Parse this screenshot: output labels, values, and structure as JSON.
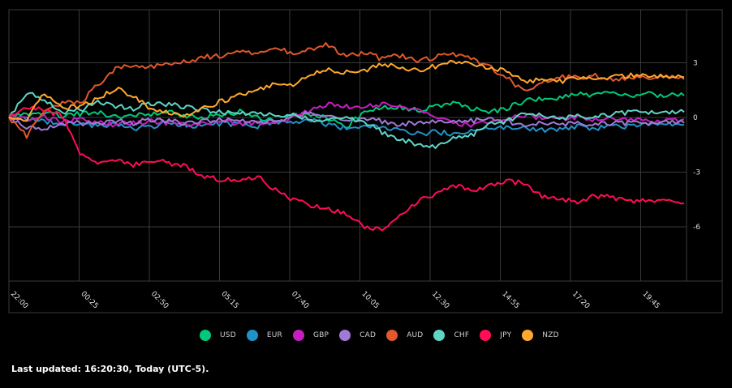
{
  "chart_data": {
    "type": "line",
    "title": "",
    "xlabel": "",
    "ylabel": "",
    "ylim": [
      -9,
      6
    ],
    "grid": true,
    "legend_position": "bottom",
    "x_tick_labels": [
      "22:00",
      "00:25",
      "02:50",
      "05:15",
      "07:40",
      "10:05",
      "12:30",
      "14:55",
      "17:20",
      "19:45"
    ],
    "y_tick_labels": [
      "3",
      "0",
      "-3",
      "-6"
    ],
    "y_ticks": [
      3,
      0,
      -3,
      -6
    ],
    "x": [
      "22:00",
      "22:36",
      "23:13",
      "23:49",
      "00:25",
      "01:01",
      "01:38",
      "02:14",
      "02:50",
      "03:26",
      "04:03",
      "04:39",
      "05:15",
      "05:51",
      "06:28",
      "07:04",
      "07:40",
      "08:16",
      "08:53",
      "09:29",
      "10:05",
      "10:41",
      "11:18",
      "11:54",
      "12:30",
      "13:06",
      "13:43",
      "14:19",
      "14:55",
      "15:31",
      "16:08",
      "16:44",
      "17:20",
      "17:56",
      "18:33",
      "19:09",
      "19:45",
      "20:21",
      "20:50"
    ],
    "series": [
      {
        "name": "USD",
        "color": "#00c97a",
        "values": [
          0,
          0.2,
          0.3,
          0.1,
          0.2,
          0.3,
          0.0,
          0.1,
          0.2,
          0.3,
          0.1,
          0.0,
          0.1,
          0.3,
          0.0,
          -0.2,
          0.1,
          0.2,
          -0.1,
          -0.5,
          0.3,
          0.5,
          0.6,
          0.4,
          0.6,
          0.8,
          0.5,
          0.3,
          0.5,
          0.9,
          1.0,
          1.1,
          1.3,
          1.2,
          1.4,
          1.2,
          1.3,
          1.2,
          1.2
        ]
      },
      {
        "name": "EUR",
        "color": "#1f93c8",
        "values": [
          0,
          -0.1,
          -0.2,
          -0.4,
          -0.3,
          -0.5,
          -0.4,
          -0.6,
          -0.5,
          -0.3,
          -0.4,
          -0.5,
          -0.3,
          -0.4,
          -0.5,
          -0.2,
          -0.3,
          -0.1,
          -0.4,
          -0.6,
          -0.4,
          -0.5,
          -0.7,
          -0.9,
          -0.8,
          -0.9,
          -0.7,
          -0.6,
          -0.5,
          -0.6,
          -0.7,
          -0.6,
          -0.5,
          -0.6,
          -0.5,
          -0.5,
          -0.4,
          -0.4,
          -0.4
        ]
      },
      {
        "name": "GBP",
        "color": "#c61fc0",
        "values": [
          0,
          -0.1,
          0.0,
          -0.2,
          -0.1,
          -0.3,
          -0.4,
          -0.3,
          -0.2,
          -0.3,
          -0.4,
          -0.3,
          -0.2,
          -0.4,
          -0.3,
          -0.2,
          0.0,
          0.4,
          0.7,
          0.6,
          0.6,
          0.7,
          0.6,
          0.4,
          0.1,
          -0.3,
          -0.4,
          -0.3,
          -0.1,
          0.1,
          0.0,
          -0.1,
          0.0,
          -0.1,
          -0.1,
          -0.1,
          -0.2,
          -0.2,
          -0.1
        ]
      },
      {
        "name": "CAD",
        "color": "#a07ad6",
        "values": [
          0,
          -0.5,
          -0.6,
          -0.4,
          -0.3,
          -0.4,
          -0.2,
          -0.3,
          -0.1,
          -0.2,
          -0.3,
          -0.2,
          -0.1,
          -0.2,
          -0.3,
          -0.2,
          0.1,
          0.3,
          0.0,
          -0.2,
          -0.1,
          -0.2,
          -0.4,
          -0.3,
          -0.2,
          -0.3,
          -0.2,
          -0.1,
          -0.2,
          -0.4,
          -0.3,
          -0.4,
          -0.3,
          -0.4,
          -0.3,
          -0.3,
          -0.3,
          -0.3,
          -0.3
        ]
      },
      {
        "name": "AUD",
        "color": "#e0582c",
        "values": [
          0,
          -1.0,
          0.3,
          0.8,
          0.8,
          1.8,
          2.7,
          2.9,
          2.8,
          3.0,
          3.1,
          3.3,
          3.4,
          3.6,
          3.5,
          3.8,
          3.5,
          3.7,
          4.0,
          3.3,
          3.6,
          3.2,
          3.4,
          3.1,
          3.3,
          3.5,
          3.2,
          2.8,
          2.2,
          1.4,
          1.9,
          2.2,
          2.2,
          2.3,
          2.1,
          2.2,
          2.2,
          2.2,
          2.1
        ]
      },
      {
        "name": "CHF",
        "color": "#5fd6c4",
        "values": [
          0,
          1.4,
          1.0,
          0.2,
          0.4,
          0.8,
          0.6,
          0.5,
          0.8,
          0.7,
          0.6,
          0.4,
          0.3,
          0.2,
          0.2,
          0.1,
          0.2,
          -0.1,
          -0.2,
          0.0,
          -0.3,
          -0.8,
          -1.2,
          -1.5,
          -1.6,
          -1.2,
          -1.0,
          -0.4,
          -0.2,
          0.3,
          0.1,
          -0.1,
          0.1,
          0.0,
          0.2,
          0.3,
          0.3,
          0.2,
          0.3
        ]
      },
      {
        "name": "JPY",
        "color": "#ff0d55",
        "values": [
          0,
          0.6,
          0.4,
          0.1,
          -2.0,
          -2.6,
          -2.4,
          -2.6,
          -2.3,
          -2.5,
          -2.7,
          -3.3,
          -3.4,
          -3.5,
          -3.2,
          -4.0,
          -4.5,
          -4.8,
          -5.0,
          -5.3,
          -6.0,
          -6.2,
          -5.3,
          -4.6,
          -4.2,
          -3.7,
          -4.0,
          -3.8,
          -3.5,
          -3.6,
          -4.3,
          -4.5,
          -4.6,
          -4.3,
          -4.4,
          -4.6,
          -4.5,
          -4.6,
          -4.7
        ]
      },
      {
        "name": "NZD",
        "color": "#ffa82e",
        "values": [
          0,
          -0.2,
          1.4,
          0.5,
          0.6,
          1.0,
          1.6,
          1.2,
          0.5,
          0.3,
          0.1,
          0.5,
          0.9,
          1.2,
          1.5,
          1.9,
          1.8,
          2.4,
          2.6,
          2.5,
          2.6,
          2.9,
          2.8,
          2.6,
          2.8,
          3.1,
          2.9,
          2.7,
          2.6,
          1.9,
          2.1,
          2.0,
          2.1,
          2.2,
          2.2,
          2.3,
          2.3,
          2.2,
          2.2
        ]
      }
    ]
  },
  "legend": {
    "items": [
      {
        "label": "USD",
        "color": "#00c97a"
      },
      {
        "label": "EUR",
        "color": "#1f93c8"
      },
      {
        "label": "GBP",
        "color": "#c61fc0"
      },
      {
        "label": "CAD",
        "color": "#a07ad6"
      },
      {
        "label": "AUD",
        "color": "#e0582c"
      },
      {
        "label": "CHF",
        "color": "#5fd6c4"
      },
      {
        "label": "JPY",
        "color": "#ff0d55"
      },
      {
        "label": "NZD",
        "color": "#ffa82e"
      }
    ]
  },
  "footer": {
    "last_updated": "Last updated: 16:20:30, Today (UTC-5)."
  }
}
